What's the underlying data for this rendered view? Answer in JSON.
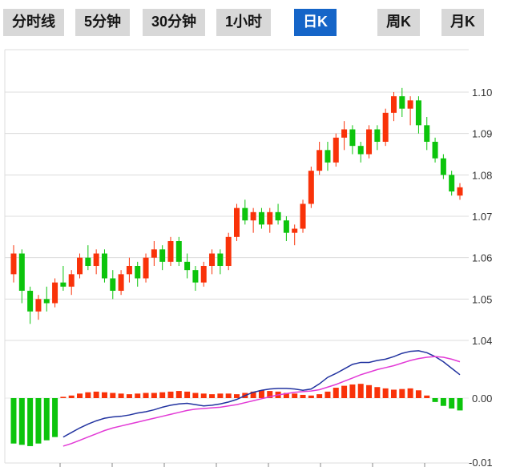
{
  "tabs": [
    {
      "label": "分时线",
      "active": false
    },
    {
      "label": "5分钟",
      "active": false
    },
    {
      "label": "30分钟",
      "active": false
    },
    {
      "label": "1小时",
      "active": false
    },
    {
      "label": "日K",
      "active": true
    },
    {
      "label": "周K",
      "active": false
    },
    {
      "label": "月K",
      "active": false
    }
  ],
  "colors": {
    "up": "#f93209",
    "down": "#0cc40c",
    "dif_line": "#2233a0",
    "dea_line": "#e23ad6",
    "grid": "#dcdcdc",
    "axis_text": "#333333",
    "tab_bg": "#d8d8d8",
    "tab_text": "#141414",
    "active_tab_bg": "#1565c8",
    "active_tab_text": "#ffffff"
  },
  "axis": {
    "price_ticks": [
      "1.10",
      "1.09",
      "1.08",
      "1.07",
      "1.06",
      "1.05",
      "1.04"
    ],
    "macd_ticks": [
      "0.00",
      "-0.01"
    ]
  },
  "chart_data": {
    "type": "candlestick",
    "panels": [
      "price",
      "macd"
    ],
    "price_ylim": [
      1.04,
      1.105
    ],
    "macd_ylim": [
      -0.011,
      0.0076
    ],
    "grid": true,
    "legend": false,
    "candles_ohlc": [
      [
        1.056,
        1.063,
        1.054,
        1.061
      ],
      [
        1.061,
        1.062,
        1.049,
        1.052
      ],
      [
        1.052,
        1.053,
        1.044,
        1.047
      ],
      [
        1.047,
        1.051,
        1.045,
        1.05
      ],
      [
        1.05,
        1.053,
        1.047,
        1.049
      ],
      [
        1.049,
        1.055,
        1.048,
        1.054
      ],
      [
        1.054,
        1.058,
        1.052,
        1.053
      ],
      [
        1.053,
        1.057,
        1.051,
        1.056
      ],
      [
        1.056,
        1.061,
        1.055,
        1.06
      ],
      [
        1.06,
        1.063,
        1.057,
        1.058
      ],
      [
        1.058,
        1.062,
        1.056,
        1.061
      ],
      [
        1.061,
        1.062,
        1.054,
        1.055
      ],
      [
        1.055,
        1.057,
        1.05,
        1.052
      ],
      [
        1.052,
        1.057,
        1.051,
        1.056
      ],
      [
        1.056,
        1.06,
        1.054,
        1.058
      ],
      [
        1.058,
        1.059,
        1.053,
        1.055
      ],
      [
        1.055,
        1.061,
        1.054,
        1.06
      ],
      [
        1.06,
        1.064,
        1.058,
        1.062
      ],
      [
        1.062,
        1.063,
        1.057,
        1.059
      ],
      [
        1.059,
        1.065,
        1.058,
        1.064
      ],
      [
        1.064,
        1.065,
        1.058,
        1.059
      ],
      [
        1.059,
        1.061,
        1.055,
        1.057
      ],
      [
        1.057,
        1.058,
        1.052,
        1.054
      ],
      [
        1.054,
        1.059,
        1.053,
        1.058
      ],
      [
        1.058,
        1.062,
        1.056,
        1.061
      ],
      [
        1.061,
        1.062,
        1.056,
        1.058
      ],
      [
        1.058,
        1.066,
        1.057,
        1.065
      ],
      [
        1.065,
        1.073,
        1.064,
        1.072
      ],
      [
        1.072,
        1.074,
        1.068,
        1.069
      ],
      [
        1.069,
        1.072,
        1.066,
        1.071
      ],
      [
        1.071,
        1.072,
        1.067,
        1.068
      ],
      [
        1.068,
        1.072,
        1.066,
        1.071
      ],
      [
        1.071,
        1.073,
        1.068,
        1.069
      ],
      [
        1.069,
        1.07,
        1.064,
        1.066
      ],
      [
        1.066,
        1.068,
        1.063,
        1.067
      ],
      [
        1.067,
        1.074,
        1.066,
        1.073
      ],
      [
        1.073,
        1.082,
        1.072,
        1.081
      ],
      [
        1.081,
        1.088,
        1.08,
        1.086
      ],
      [
        1.086,
        1.088,
        1.081,
        1.083
      ],
      [
        1.083,
        1.09,
        1.082,
        1.089
      ],
      [
        1.089,
        1.093,
        1.086,
        1.091
      ],
      [
        1.091,
        1.092,
        1.085,
        1.087
      ],
      [
        1.087,
        1.088,
        1.083,
        1.085
      ],
      [
        1.085,
        1.092,
        1.084,
        1.091
      ],
      [
        1.091,
        1.092,
        1.086,
        1.088
      ],
      [
        1.088,
        1.096,
        1.087,
        1.095
      ],
      [
        1.095,
        1.1,
        1.093,
        1.099
      ],
      [
        1.099,
        1.101,
        1.094,
        1.096
      ],
      [
        1.096,
        1.099,
        1.092,
        1.098
      ],
      [
        1.098,
        1.099,
        1.09,
        1.092
      ],
      [
        1.092,
        1.094,
        1.086,
        1.088
      ],
      [
        1.088,
        1.089,
        1.083,
        1.084
      ],
      [
        1.084,
        1.085,
        1.079,
        1.08
      ],
      [
        1.08,
        1.081,
        1.075,
        1.076
      ],
      [
        1.075,
        1.078,
        1.074,
        1.077
      ]
    ],
    "macd": {
      "dif": [
        null,
        null,
        null,
        null,
        null,
        null,
        -0.006,
        -0.0053,
        -0.0046,
        -0.004,
        -0.0035,
        -0.0031,
        -0.0029,
        -0.0028,
        -0.0026,
        -0.0023,
        -0.0021,
        -0.0018,
        -0.0014,
        -0.0011,
        -0.0009,
        -0.0008,
        -0.001,
        -0.0012,
        -0.0011,
        -0.0009,
        -0.0006,
        -0.0002,
        0.0004,
        0.0009,
        0.0012,
        0.0014,
        0.0015,
        0.0015,
        0.0014,
        0.0012,
        0.0014,
        0.0022,
        0.0032,
        0.0038,
        0.0045,
        0.0052,
        0.0055,
        0.0055,
        0.0058,
        0.006,
        0.0064,
        0.0069,
        0.0072,
        0.0073,
        0.007,
        0.0064,
        0.0056,
        0.0046,
        0.0036
      ],
      "dea": [
        null,
        null,
        null,
        null,
        null,
        null,
        -0.0074,
        -0.007,
        -0.0065,
        -0.006,
        -0.0055,
        -0.005,
        -0.0046,
        -0.0043,
        -0.004,
        -0.0037,
        -0.0034,
        -0.0031,
        -0.0028,
        -0.0025,
        -0.0022,
        -0.0019,
        -0.0017,
        -0.0016,
        -0.0015,
        -0.0014,
        -0.0012,
        -0.001,
        -0.0007,
        -0.0004,
        -0.0001,
        0.0002,
        0.0005,
        0.0007,
        0.0009,
        0.001,
        0.0011,
        0.0013,
        0.0017,
        0.0021,
        0.0026,
        0.0031,
        0.0036,
        0.004,
        0.0044,
        0.0047,
        0.005,
        0.0054,
        0.0058,
        0.0061,
        0.0063,
        0.0064,
        0.0063,
        0.006,
        0.0056
      ],
      "hist": [
        -0.007,
        -0.0072,
        -0.0074,
        -0.007,
        -0.0065,
        -0.006,
        0.0002,
        0.0004,
        0.0007,
        0.0009,
        0.001,
        0.0009,
        0.0008,
        0.0007,
        0.0006,
        0.0007,
        0.0008,
        0.0008,
        0.0009,
        0.001,
        0.0011,
        0.001,
        0.0008,
        0.0007,
        0.0006,
        0.0007,
        0.0007,
        0.0006,
        0.0008,
        0.001,
        0.0012,
        0.0011,
        0.001,
        0.0008,
        0.0007,
        0.0005,
        0.0004,
        0.0006,
        0.001,
        0.0016,
        0.0019,
        0.0021,
        0.0022,
        0.002,
        0.0017,
        0.0015,
        0.0013,
        0.0014,
        0.0015,
        0.0012,
        0.0004,
        -0.0006,
        -0.0012,
        -0.0016,
        -0.0019
      ]
    }
  }
}
